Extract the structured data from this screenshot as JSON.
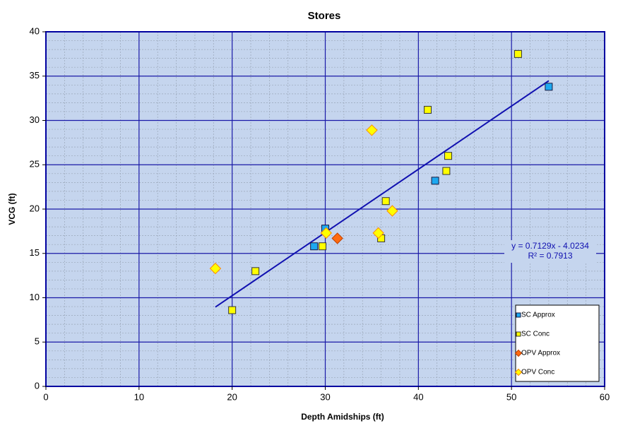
{
  "chart_data": {
    "type": "scatter",
    "title": "Stores",
    "x_label": "Depth Amidships  (ft)",
    "y_label": "VCG  (ft)",
    "xlim": [
      0,
      60
    ],
    "xticks": [
      0,
      10,
      20,
      30,
      40,
      50,
      60
    ],
    "ylim": [
      0,
      40
    ],
    "yticks": [
      0,
      5,
      10,
      15,
      20,
      25,
      30,
      35,
      40
    ],
    "grid": true,
    "x_minor_step": 2,
    "y_minor_step": 1,
    "legend": "lower right",
    "series": [
      {
        "name": "SC Approx",
        "color": "#1ea8f0",
        "edge": "#1a1a40",
        "marker": "square",
        "x": [
          28.8,
          30,
          41.8,
          54
        ],
        "values": [
          15.8,
          17.8,
          23.2,
          33.8
        ]
      },
      {
        "name": "SC Conc",
        "color": "#ffff00",
        "edge": "#333333",
        "marker": "square",
        "x": [
          20,
          22.5,
          29.7,
          36,
          36.5,
          41,
          43,
          43.2,
          50.7
        ],
        "values": [
          8.6,
          13,
          15.8,
          16.7,
          20.9,
          31.2,
          24.3,
          26,
          37.5
        ]
      },
      {
        "name": "OPV Approx",
        "color": "#ff6a10",
        "edge": "#c04000",
        "marker": "diamond",
        "x": [
          31.3
        ],
        "values": [
          16.7
        ]
      },
      {
        "name": "OPV Conc",
        "color": "#ffff00",
        "edge": "#ff8c00",
        "marker": "diamond",
        "x": [
          18.2,
          30.1,
          35,
          35.7,
          37.2
        ],
        "values": [
          13.3,
          17.3,
          28.9,
          17.3,
          19.8
        ]
      }
    ],
    "trendline": {
      "slope": 0.7129,
      "intercept": -4.0234,
      "x_range": [
        18.2,
        54
      ],
      "color": "#1010b0",
      "labels": [
        "y = 0.7129x - 4.0234",
        "R² = 0.7913"
      ]
    }
  }
}
